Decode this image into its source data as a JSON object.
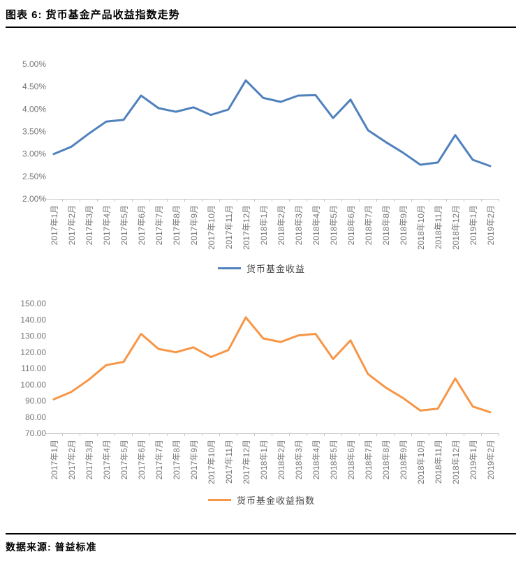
{
  "page": {
    "title": "图表 6: 货币基金产品收益指数走势",
    "source_label": "数据来源: 普益标准"
  },
  "colors": {
    "series_blue": "#4F81BD",
    "series_orange": "#F79646",
    "axis_line": "#C6C6C6",
    "tick_text": "#767676",
    "rule_black": "#000000"
  },
  "chart_data": [
    {
      "type": "line",
      "name": "money-fund-yield",
      "title": "",
      "xlabel": "",
      "ylabel": "",
      "grid": false,
      "legend_position": "bottom",
      "ylim": [
        2.0,
        5.0
      ],
      "ytick_step": 0.5,
      "ytick_labels": [
        "5.00%",
        "4.50%",
        "4.00%",
        "3.50%",
        "3.00%",
        "2.50%",
        "2.00%"
      ],
      "categories": [
        "2017年1月",
        "2017年2月",
        "2017年3月",
        "2017年4月",
        "2017年5月",
        "2017年6月",
        "2017年7月",
        "2017年8月",
        "2017年9月",
        "2017年10月",
        "2017年11月",
        "2017年12月",
        "2018年1月",
        "2018年2月",
        "2018年3月",
        "2018年4月",
        "2018年5月",
        "2018年6月",
        "2018年7月",
        "2018年8月",
        "2018年9月",
        "2018年10月",
        "2018年11月",
        "2018年12月",
        "2019年1月",
        "2019年2月"
      ],
      "series": [
        {
          "name": "货币基金收益",
          "color": "#4F81BD",
          "unit": "%",
          "values": [
            3.0,
            3.16,
            3.45,
            3.72,
            3.76,
            4.3,
            4.02,
            3.94,
            4.04,
            3.87,
            3.99,
            4.64,
            4.25,
            4.16,
            4.3,
            4.31,
            3.8,
            4.21,
            3.53,
            3.27,
            3.03,
            2.76,
            2.81,
            3.42,
            2.87,
            2.73
          ]
        }
      ]
    },
    {
      "type": "line",
      "name": "money-fund-yield-index",
      "title": "",
      "xlabel": "",
      "ylabel": "",
      "grid": false,
      "legend_position": "bottom",
      "ylim": [
        70,
        150
      ],
      "ytick_step": 10,
      "ytick_labels": [
        "150.00",
        "140.00",
        "130.00",
        "120.00",
        "110.00",
        "100.00",
        "90.00",
        "80.00",
        "70.00"
      ],
      "categories": [
        "2017年1月",
        "2017年2月",
        "2017年3月",
        "2017年4月",
        "2017年5月",
        "2017年6月",
        "2017年7月",
        "2017年8月",
        "2017年9月",
        "2017年10月",
        "2017年11月",
        "2017年12月",
        "2018年1月",
        "2018年2月",
        "2018年3月",
        "2018年4月",
        "2018年5月",
        "2018年6月",
        "2018年7月",
        "2018年8月",
        "2018年9月",
        "2018年10月",
        "2018年11月",
        "2018年12月",
        "2019年1月",
        "2019年2月"
      ],
      "series": [
        {
          "name": "货币基金收益指数",
          "color": "#F79646",
          "unit": "",
          "values": [
            91.0,
            95.5,
            103.0,
            112.0,
            114.0,
            131.3,
            122.0,
            120.0,
            123.0,
            117.0,
            121.3,
            141.5,
            128.5,
            126.3,
            130.3,
            131.3,
            115.8,
            127.3,
            106.5,
            98.3,
            91.8,
            84.0,
            85.2,
            103.8,
            86.5,
            83.0
          ]
        }
      ]
    }
  ]
}
